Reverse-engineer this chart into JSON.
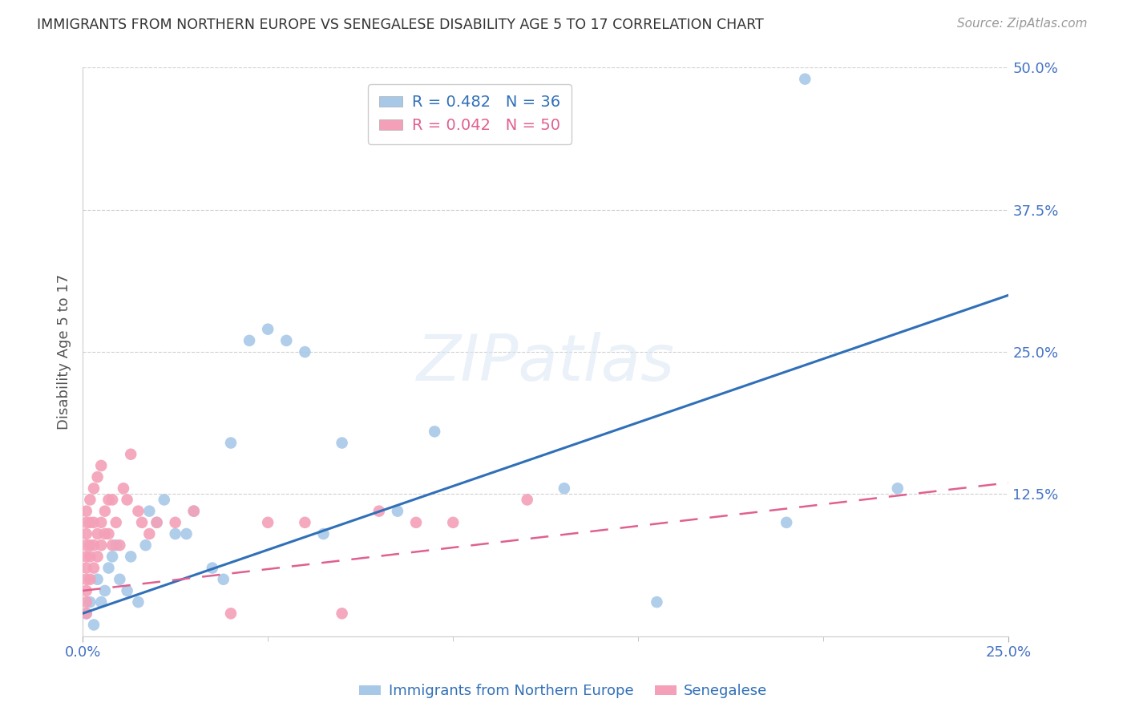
{
  "title": "IMMIGRANTS FROM NORTHERN EUROPE VS SENEGALESE DISABILITY AGE 5 TO 17 CORRELATION CHART",
  "source": "Source: ZipAtlas.com",
  "xlabel_blue": "Immigrants from Northern Europe",
  "xlabel_pink": "Senegalese",
  "ylabel": "Disability Age 5 to 17",
  "xlim": [
    0.0,
    0.25
  ],
  "ylim": [
    0.0,
    0.5
  ],
  "xticks": [
    0.0,
    0.25
  ],
  "xtick_labels": [
    "0.0%",
    "25.0%"
  ],
  "yticks": [
    0.0,
    0.125,
    0.25,
    0.375,
    0.5
  ],
  "ytick_labels": [
    "",
    "12.5%",
    "25.0%",
    "37.5%",
    "50.0%"
  ],
  "blue_R": 0.482,
  "blue_N": 36,
  "pink_R": 0.042,
  "pink_N": 50,
  "blue_color": "#a8c8e8",
  "pink_color": "#f4a0b8",
  "blue_line_color": "#3070b8",
  "pink_line_color": "#e06090",
  "axis_label_color": "#4472c4",
  "grid_color": "#d0d0d0",
  "watermark": "ZIPatlas",
  "blue_line_x0": 0.0,
  "blue_line_y0": 0.02,
  "blue_line_x1": 0.25,
  "blue_line_y1": 0.3,
  "pink_line_x0": 0.0,
  "pink_line_y0": 0.04,
  "pink_line_x1": 0.25,
  "pink_line_y1": 0.135,
  "blue_scatter_x": [
    0.001,
    0.002,
    0.003,
    0.004,
    0.005,
    0.006,
    0.007,
    0.008,
    0.009,
    0.01,
    0.012,
    0.013,
    0.015,
    0.017,
    0.018,
    0.02,
    0.022,
    0.025,
    0.028,
    0.03,
    0.035,
    0.038,
    0.04,
    0.045,
    0.05,
    0.055,
    0.06,
    0.065,
    0.07,
    0.085,
    0.095,
    0.13,
    0.155,
    0.19,
    0.22,
    0.195
  ],
  "blue_scatter_y": [
    0.02,
    0.03,
    0.01,
    0.05,
    0.03,
    0.04,
    0.06,
    0.07,
    0.08,
    0.05,
    0.04,
    0.07,
    0.03,
    0.08,
    0.11,
    0.1,
    0.12,
    0.09,
    0.09,
    0.11,
    0.06,
    0.05,
    0.17,
    0.26,
    0.27,
    0.26,
    0.25,
    0.09,
    0.17,
    0.11,
    0.18,
    0.13,
    0.03,
    0.1,
    0.13,
    0.49
  ],
  "pink_scatter_x": [
    0.001,
    0.001,
    0.001,
    0.001,
    0.001,
    0.001,
    0.001,
    0.001,
    0.001,
    0.001,
    0.002,
    0.002,
    0.002,
    0.002,
    0.002,
    0.003,
    0.003,
    0.003,
    0.003,
    0.004,
    0.004,
    0.004,
    0.005,
    0.005,
    0.005,
    0.006,
    0.006,
    0.007,
    0.007,
    0.008,
    0.008,
    0.009,
    0.01,
    0.011,
    0.012,
    0.013,
    0.015,
    0.016,
    0.018,
    0.02,
    0.025,
    0.03,
    0.04,
    0.05,
    0.06,
    0.07,
    0.08,
    0.09,
    0.1,
    0.12
  ],
  "pink_scatter_y": [
    0.02,
    0.03,
    0.04,
    0.05,
    0.06,
    0.07,
    0.08,
    0.09,
    0.1,
    0.11,
    0.05,
    0.07,
    0.08,
    0.1,
    0.12,
    0.06,
    0.08,
    0.1,
    0.13,
    0.07,
    0.09,
    0.14,
    0.08,
    0.1,
    0.15,
    0.09,
    0.11,
    0.09,
    0.12,
    0.08,
    0.12,
    0.1,
    0.08,
    0.13,
    0.12,
    0.16,
    0.11,
    0.1,
    0.09,
    0.1,
    0.1,
    0.11,
    0.02,
    0.1,
    0.1,
    0.02,
    0.11,
    0.1,
    0.1,
    0.12
  ]
}
